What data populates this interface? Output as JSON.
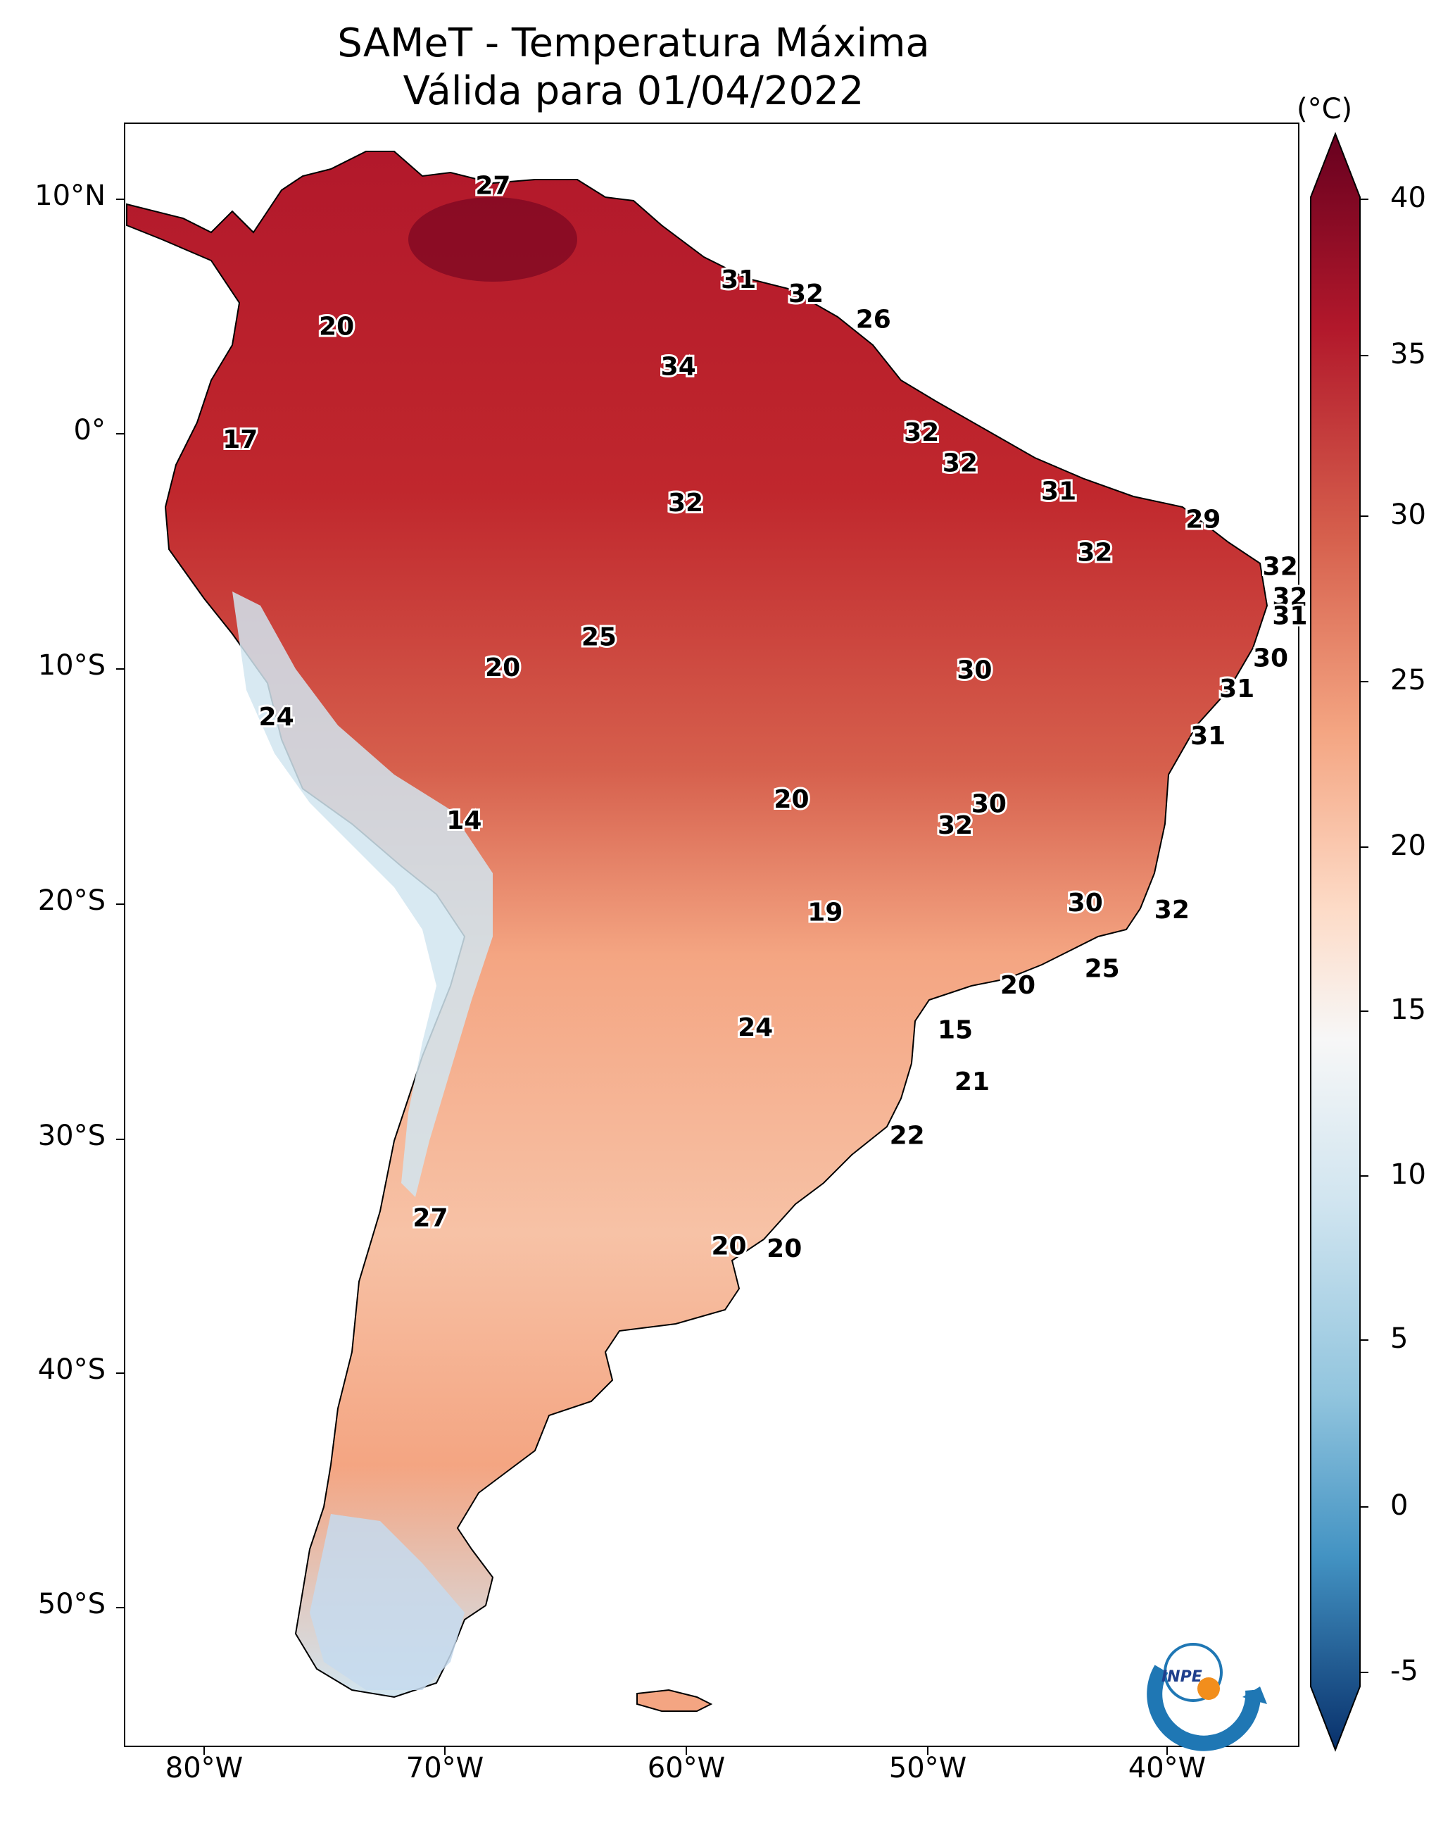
{
  "title": {
    "line1": "SAMeT - Temperatura Máxima",
    "line2": "Válida para 01/04/2022"
  },
  "axes": {
    "lat_ticks": [
      "10°N",
      "0°",
      "10°S",
      "20°S",
      "30°S",
      "40°S",
      "50°S"
    ],
    "lon_ticks": [
      "80°W",
      "70°W",
      "60°W",
      "50°W",
      "40°W"
    ]
  },
  "colorbar": {
    "unit": "(°C)",
    "ticks": [
      "40",
      "35",
      "30",
      "25",
      "20",
      "15",
      "10",
      "5",
      "0",
      "-5"
    ],
    "range": [
      -7,
      41
    ],
    "colors": {
      "cold": "#08306b",
      "cool": "#6baed6",
      "neutral": "#f7f7f7",
      "warm": "#f4a582",
      "hot": "#b2182b",
      "extreme": "#67001f"
    }
  },
  "labels": [
    {
      "text": "27",
      "lon": -68.0,
      "lat": 10.5
    },
    {
      "text": "20",
      "lon": -74.5,
      "lat": 4.5
    },
    {
      "text": "17",
      "lon": -78.5,
      "lat": -0.3
    },
    {
      "text": "31",
      "lon": -57.8,
      "lat": 6.5
    },
    {
      "text": "32",
      "lon": -55.0,
      "lat": 5.9
    },
    {
      "text": "26",
      "lon": -52.2,
      "lat": 4.8
    },
    {
      "text": "34",
      "lon": -60.3,
      "lat": 2.8
    },
    {
      "text": "32",
      "lon": -50.2,
      "lat": 0.0
    },
    {
      "text": "32",
      "lon": -60.0,
      "lat": -3.0
    },
    {
      "text": "32",
      "lon": -48.6,
      "lat": -1.3
    },
    {
      "text": "31",
      "lon": -44.5,
      "lat": -2.5
    },
    {
      "text": "29",
      "lon": -38.5,
      "lat": -3.7
    },
    {
      "text": "32",
      "lon": -43.0,
      "lat": -5.1
    },
    {
      "text": "32",
      "lon": -35.3,
      "lat": -5.7
    },
    {
      "text": "32",
      "lon": -34.9,
      "lat": -7.0
    },
    {
      "text": "31",
      "lon": -34.9,
      "lat": -7.8
    },
    {
      "text": "30",
      "lon": -35.7,
      "lat": -9.6
    },
    {
      "text": "25",
      "lon": -63.6,
      "lat": -8.7
    },
    {
      "text": "20",
      "lon": -67.6,
      "lat": -10.0
    },
    {
      "text": "30",
      "lon": -48.0,
      "lat": -10.1
    },
    {
      "text": "31",
      "lon": -37.1,
      "lat": -10.9
    },
    {
      "text": "24",
      "lon": -77.0,
      "lat": -12.1
    },
    {
      "text": "31",
      "lon": -38.3,
      "lat": -12.9
    },
    {
      "text": "20",
      "lon": -55.6,
      "lat": -15.6
    },
    {
      "text": "30",
      "lon": -47.4,
      "lat": -15.8
    },
    {
      "text": "32",
      "lon": -48.8,
      "lat": -16.7
    },
    {
      "text": "14",
      "lon": -69.2,
      "lat": -16.5
    },
    {
      "text": "19",
      "lon": -54.2,
      "lat": -20.4
    },
    {
      "text": "30",
      "lon": -43.4,
      "lat": -20.0
    },
    {
      "text": "32",
      "lon": -39.8,
      "lat": -20.3
    },
    {
      "text": "25",
      "lon": -42.7,
      "lat": -22.8
    },
    {
      "text": "20",
      "lon": -46.2,
      "lat": -23.5
    },
    {
      "text": "24",
      "lon": -57.1,
      "lat": -25.3
    },
    {
      "text": "15",
      "lon": -48.8,
      "lat": -25.4
    },
    {
      "text": "21",
      "lon": -48.1,
      "lat": -27.6
    },
    {
      "text": "22",
      "lon": -50.8,
      "lat": -29.9
    },
    {
      "text": "27",
      "lon": -70.6,
      "lat": -33.4
    },
    {
      "text": "20",
      "lon": -58.2,
      "lat": -34.6
    },
    {
      "text": "20",
      "lon": -55.9,
      "lat": -34.7
    }
  ],
  "logo": {
    "text": "INPE"
  }
}
